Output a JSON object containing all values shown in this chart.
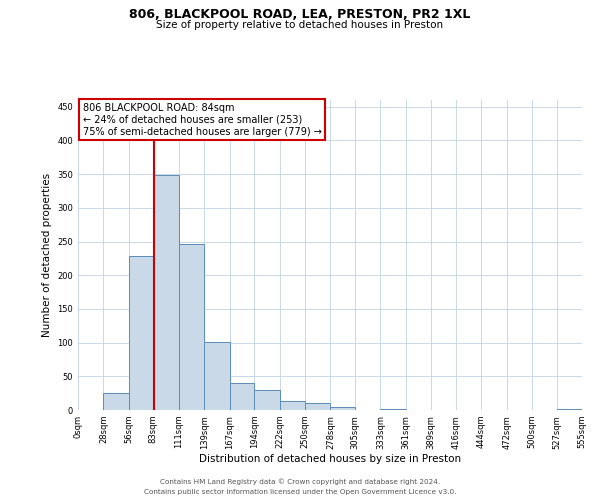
{
  "title": "806, BLACKPOOL ROAD, LEA, PRESTON, PR2 1XL",
  "subtitle": "Size of property relative to detached houses in Preston",
  "bar_values": [
    0,
    25,
    228,
    348,
    246,
    101,
    40,
    30,
    14,
    10,
    4,
    0,
    2,
    0,
    0,
    0,
    0,
    0,
    0,
    2
  ],
  "bin_edges": [
    0,
    28,
    56,
    83,
    111,
    139,
    167,
    194,
    222,
    250,
    278,
    305,
    333,
    361,
    389,
    416,
    444,
    472,
    500,
    527,
    555
  ],
  "bin_labels": [
    "0sqm",
    "28sqm",
    "56sqm",
    "83sqm",
    "111sqm",
    "139sqm",
    "167sqm",
    "194sqm",
    "222sqm",
    "250sqm",
    "278sqm",
    "305sqm",
    "333sqm",
    "361sqm",
    "389sqm",
    "416sqm",
    "444sqm",
    "472sqm",
    "500sqm",
    "527sqm",
    "555sqm"
  ],
  "bar_color": "#c9d9e8",
  "bar_edgecolor": "#5b8db8",
  "property_line_x": 84,
  "property_line_color": "#cc0000",
  "annotation_text": "806 BLACKPOOL ROAD: 84sqm\n← 24% of detached houses are smaller (253)\n75% of semi-detached houses are larger (779) →",
  "annotation_box_edgecolor": "#cc0000",
  "annotation_box_facecolor": "#ffffff",
  "ylabel": "Number of detached properties",
  "xlabel": "Distribution of detached houses by size in Preston",
  "ylim": [
    0,
    460
  ],
  "yticks": [
    0,
    50,
    100,
    150,
    200,
    250,
    300,
    350,
    400,
    450
  ],
  "footer_line1": "Contains HM Land Registry data © Crown copyright and database right 2024.",
  "footer_line2": "Contains public sector information licensed under the Open Government Licence v3.0.",
  "background_color": "#ffffff",
  "grid_color": "#c8d8e8"
}
